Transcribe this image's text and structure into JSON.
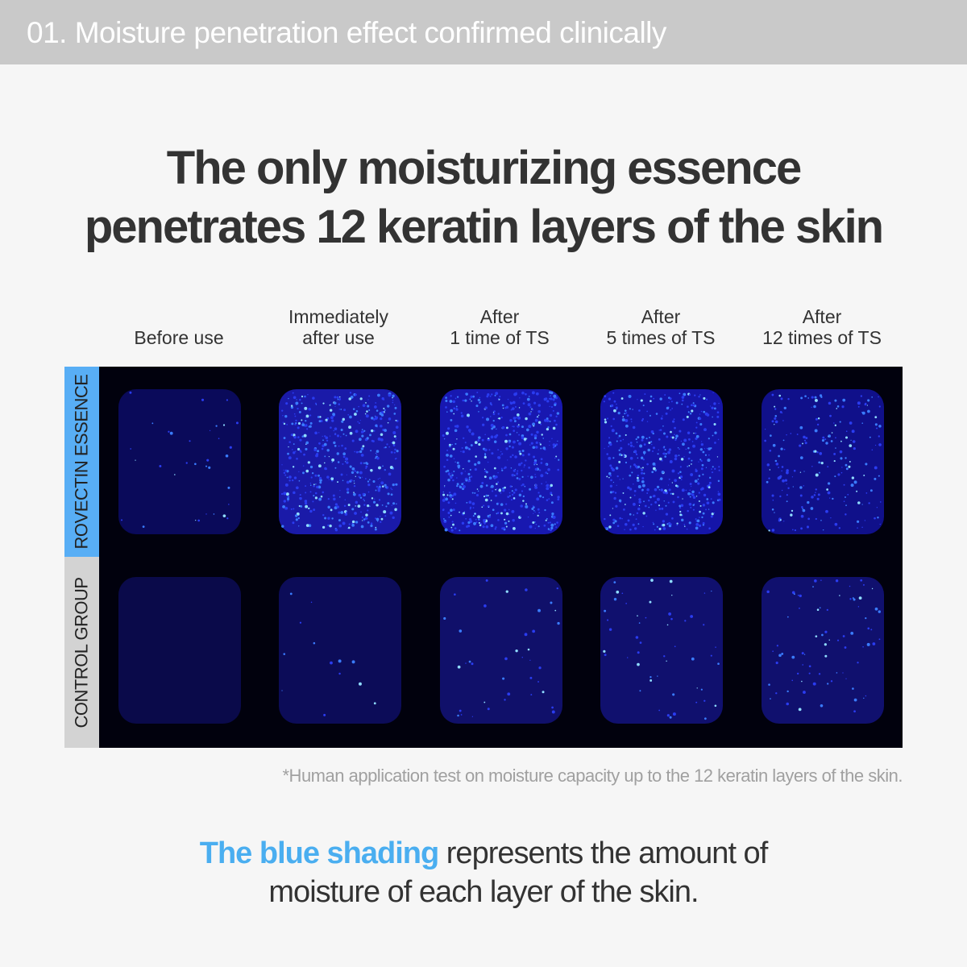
{
  "header": {
    "title": "01. Moisture penetration effect confirmed clinically"
  },
  "headline": {
    "line1": "The only moisturizing essence",
    "line2": "penetrates 12 keratin layers of the skin"
  },
  "columns": [
    {
      "line1": "",
      "line2": "Before use"
    },
    {
      "line1": "Immediately",
      "line2": "after use"
    },
    {
      "line1": "After",
      "line2": "1 time of TS"
    },
    {
      "line1": "After",
      "line2": "5 times of TS"
    },
    {
      "line1": "After",
      "line2": "12 times of TS"
    }
  ],
  "rows": [
    {
      "label": "ROVECTIN ESSENCE",
      "color": "#58aef5"
    },
    {
      "label": "CONTROL GROUP",
      "color": "#d3d3d3"
    }
  ],
  "footnote": "*Human application test on moisture capacity up to the 12 keratin layers of the skin.",
  "bottom": {
    "highlight": "The blue shading",
    "rest": " represents the amount of",
    "line2": "moisture of each layer of the skin."
  },
  "colors": {
    "highlight": "#4aaef0",
    "image_bg": "#01010d"
  }
}
